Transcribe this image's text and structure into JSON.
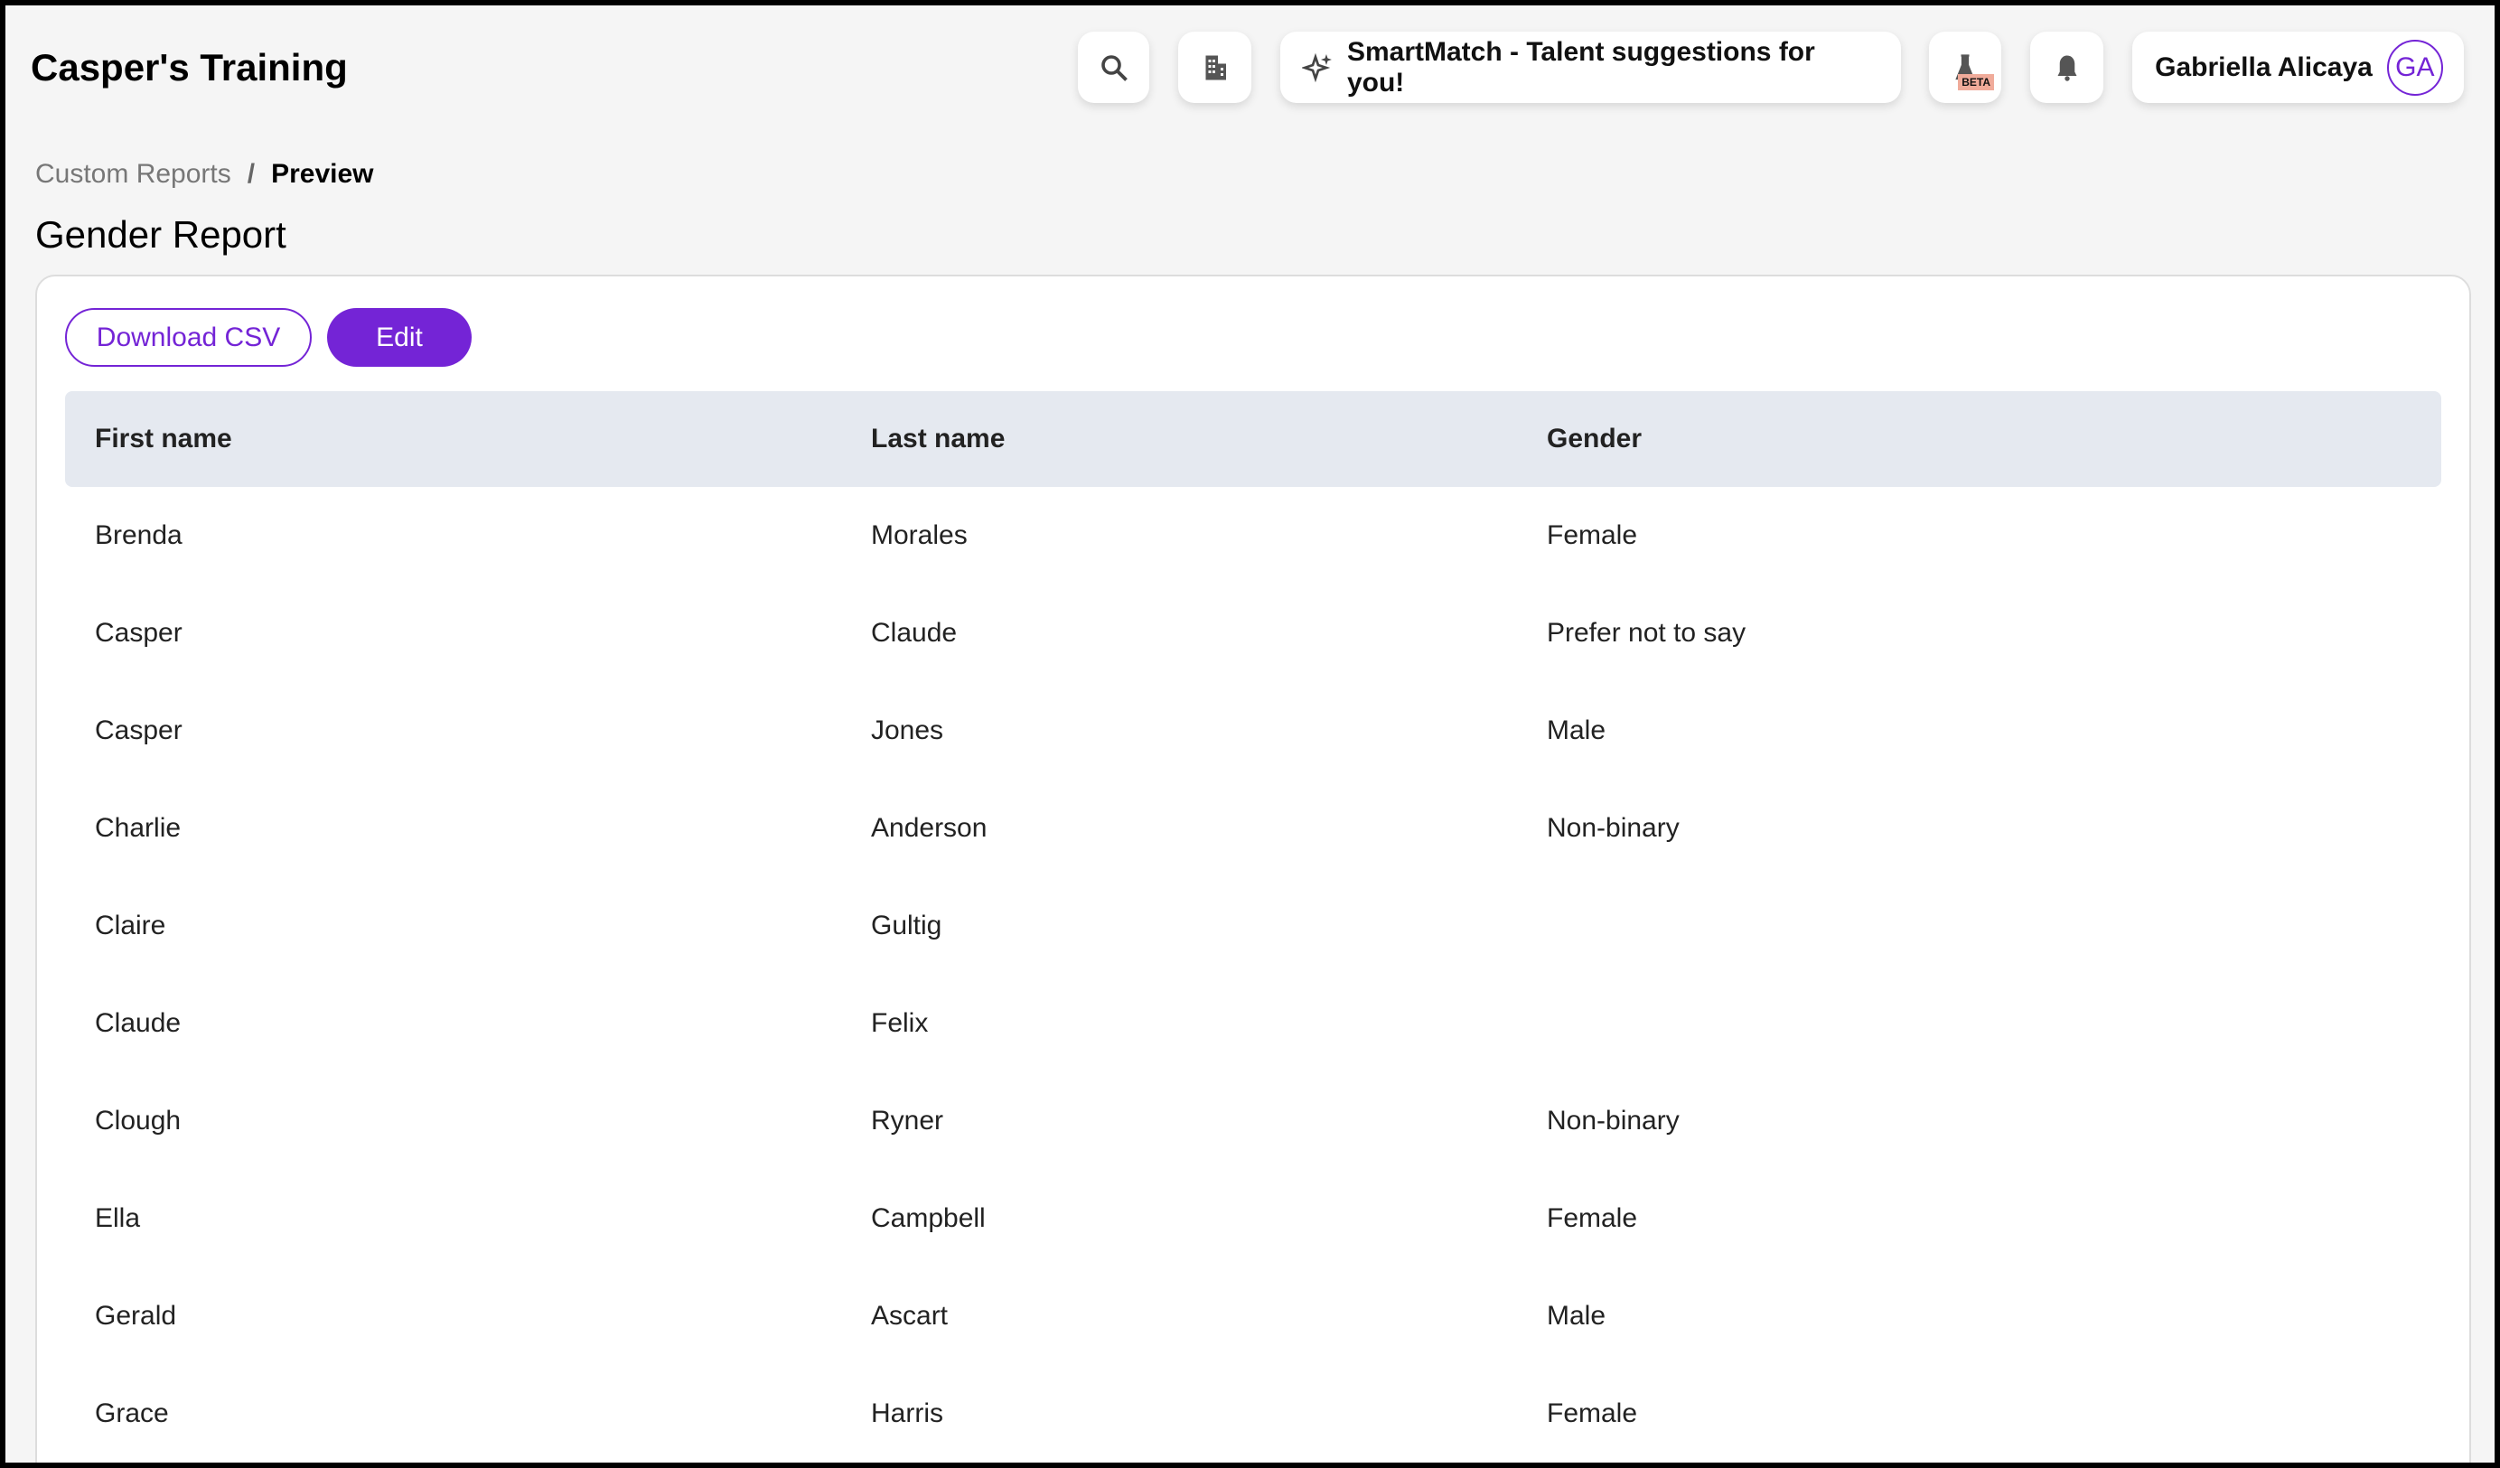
{
  "header": {
    "brand": "Casper's Training",
    "smartmatch": "SmartMatch - Talent suggestions for you!",
    "beta": "BETA",
    "user_name": "Gabriella Alicaya",
    "user_initials": "GA",
    "icons": [
      "search-icon",
      "building-icon",
      "sparkle-icon",
      "flask-icon",
      "bell-icon"
    ]
  },
  "breadcrumb": {
    "parent": "Custom Reports",
    "separator": "/",
    "current": "Preview"
  },
  "page_title": "Gender Report",
  "actions": {
    "download": "Download CSV",
    "edit": "Edit"
  },
  "colors": {
    "accent": "#7424d6",
    "header_row": "#e5e9f0"
  },
  "table": {
    "columns": [
      "First name",
      "Last name",
      "Gender"
    ],
    "rows": [
      [
        "Brenda",
        "Morales",
        "Female"
      ],
      [
        "Casper",
        "Claude",
        "Prefer not to say"
      ],
      [
        "Casper",
        "Jones",
        "Male"
      ],
      [
        "Charlie",
        "Anderson",
        "Non-binary"
      ],
      [
        "Claire",
        "Gultig",
        ""
      ],
      [
        "Claude",
        "Felix",
        ""
      ],
      [
        "Clough",
        "Ryner",
        "Non-binary"
      ],
      [
        "Ella",
        "Campbell",
        "Female"
      ],
      [
        "Gerald",
        "Ascart",
        "Male"
      ],
      [
        "Grace",
        "Harris",
        "Female"
      ]
    ]
  }
}
